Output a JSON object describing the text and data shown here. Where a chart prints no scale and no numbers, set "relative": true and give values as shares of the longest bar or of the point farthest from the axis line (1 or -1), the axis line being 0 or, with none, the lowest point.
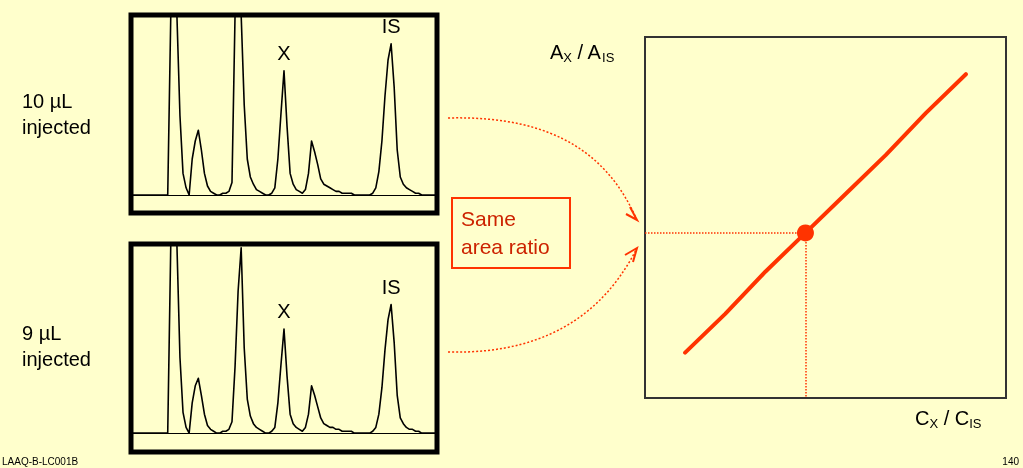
{
  "chart_data": [
    {
      "type": "line",
      "relative": true,
      "ylabel": "10 µL injected",
      "marker": "none",
      "line_style": "solid",
      "categories": [
        null,
        null,
        null,
        null,
        null,
        null,
        null,
        null,
        null,
        null,
        null,
        null,
        null,
        null,
        null,
        null,
        null,
        null,
        null,
        null,
        null,
        null,
        null,
        null,
        null,
        null,
        null,
        null,
        null,
        null,
        null,
        null,
        null,
        null,
        null,
        null,
        null,
        null,
        null,
        null,
        null,
        null,
        null,
        null,
        null,
        null,
        null,
        null,
        null,
        null,
        null,
        null,
        null,
        null,
        null,
        null,
        null,
        null,
        null,
        null,
        null,
        null,
        null,
        null,
        null,
        null,
        null,
        null,
        null,
        null,
        null,
        null,
        null,
        null,
        null,
        null,
        null,
        null,
        null,
        null,
        null,
        null,
        null,
        null,
        null,
        null,
        null,
        null,
        null,
        null,
        null,
        null,
        null,
        null,
        null,
        null,
        null,
        null,
        null,
        null,
        null
      ],
      "series": [
        {
          "color": "#000000",
          "values": [
            0,
            0,
            0,
            0,
            0,
            0,
            0,
            0,
            0,
            0,
            0,
            0,
            0,
            1,
            1,
            1,
            0.44,
            0.12,
            0.04,
            0,
            0.2,
            0.3,
            0.36,
            0.25,
            0.12,
            0.05,
            0.02,
            0.01,
            0,
            0,
            0.01,
            0.01,
            0.02,
            0.07,
            1,
            1,
            1,
            0.5,
            0.2,
            0.1,
            0.06,
            0.03,
            0.02,
            0.01,
            0,
            0,
            0.01,
            0.04,
            0.2,
            0.45,
            0.69,
            0.38,
            0.12,
            0.06,
            0.03,
            0.02,
            0.01,
            0.03,
            0.12,
            0.3,
            0.24,
            0.17,
            0.09,
            0.06,
            0.05,
            0.04,
            0.03,
            0.02,
            0.02,
            0.01,
            0.01,
            0.01,
            0.01,
            0,
            0,
            0,
            0,
            0,
            0,
            0.01,
            0.04,
            0.13,
            0.3,
            0.55,
            0.75,
            0.84,
            0.6,
            0.25,
            0.1,
            0.06,
            0.04,
            0.03,
            0.02,
            0.01,
            0.01,
            0,
            0,
            0,
            0,
            0,
            0
          ]
        }
      ],
      "annotations": [
        {
          "text": "X",
          "y": 0.69
        },
        {
          "text": "IS",
          "y": 0.84
        }
      ]
    },
    {
      "type": "line",
      "relative": true,
      "ylabel": "9 µL injected",
      "marker": "none",
      "line_style": "solid",
      "categories": [
        null,
        null,
        null,
        null,
        null,
        null,
        null,
        null,
        null,
        null,
        null,
        null,
        null,
        null,
        null,
        null,
        null,
        null,
        null,
        null,
        null,
        null,
        null,
        null,
        null,
        null,
        null,
        null,
        null,
        null,
        null,
        null,
        null,
        null,
        null,
        null,
        null,
        null,
        null,
        null,
        null,
        null,
        null,
        null,
        null,
        null,
        null,
        null,
        null,
        null,
        null,
        null,
        null,
        null,
        null,
        null,
        null,
        null,
        null,
        null,
        null,
        null,
        null,
        null,
        null,
        null,
        null,
        null,
        null,
        null,
        null,
        null,
        null,
        null,
        null,
        null,
        null,
        null,
        null,
        null,
        null,
        null,
        null,
        null,
        null,
        null,
        null,
        null,
        null,
        null,
        null,
        null,
        null,
        null,
        null,
        null,
        null,
        null,
        null,
        null,
        null
      ],
      "series": [
        {
          "color": "#000000",
          "values": [
            0,
            0,
            0,
            0,
            0,
            0,
            0,
            0,
            0,
            0,
            0,
            0,
            0,
            1,
            1,
            1,
            0.4,
            0.11,
            0.03,
            0,
            0.16,
            0.25,
            0.29,
            0.2,
            0.1,
            0.04,
            0.02,
            0.01,
            0,
            0,
            0.01,
            0.01,
            0.02,
            0.06,
            0.35,
            0.75,
            0.98,
            0.45,
            0.18,
            0.09,
            0.05,
            0.03,
            0.02,
            0.01,
            0,
            0,
            0.01,
            0.03,
            0.16,
            0.36,
            0.55,
            0.3,
            0.1,
            0.05,
            0.03,
            0.02,
            0.01,
            0.03,
            0.1,
            0.25,
            0.2,
            0.14,
            0.08,
            0.05,
            0.04,
            0.03,
            0.03,
            0.02,
            0.02,
            0.01,
            0.01,
            0.01,
            0.01,
            0,
            0,
            0,
            0,
            0,
            0,
            0.01,
            0.03,
            0.1,
            0.24,
            0.44,
            0.6,
            0.68,
            0.48,
            0.2,
            0.08,
            0.05,
            0.03,
            0.02,
            0.02,
            0.01,
            0.01,
            0,
            0,
            0,
            0,
            0,
            0
          ]
        }
      ],
      "annotations": [
        {
          "text": "X",
          "y": 0.55
        },
        {
          "text": "IS",
          "y": 0.68
        },
        "LAAQ-B-LC001B"
      ]
    },
    {
      "type": "line",
      "relative": true,
      "xlabel": "C$_{X}$ / C$_{IS}$",
      "ylabel": "A$_{X}$ / A$_{IS}$",
      "line_style": "solid",
      "categories": [
        null,
        null,
        null,
        null,
        null,
        null,
        null,
        null,
        null,
        null
      ],
      "series": [
        {
          "color": "#ff3300",
          "values": [
            null,
            0.14,
            0.26,
            0.39,
            0.51,
            0.63,
            0.75,
            0.88,
            1,
            null
          ]
        }
      ],
      "ref_lines": [
        {
          "axis": "y",
          "value": 0.51,
          "color": "#ff3300",
          "line_style": "dotted"
        }
      ],
      "annotations": [
        "Same area ratio",
        "140"
      ]
    }
  ]
}
